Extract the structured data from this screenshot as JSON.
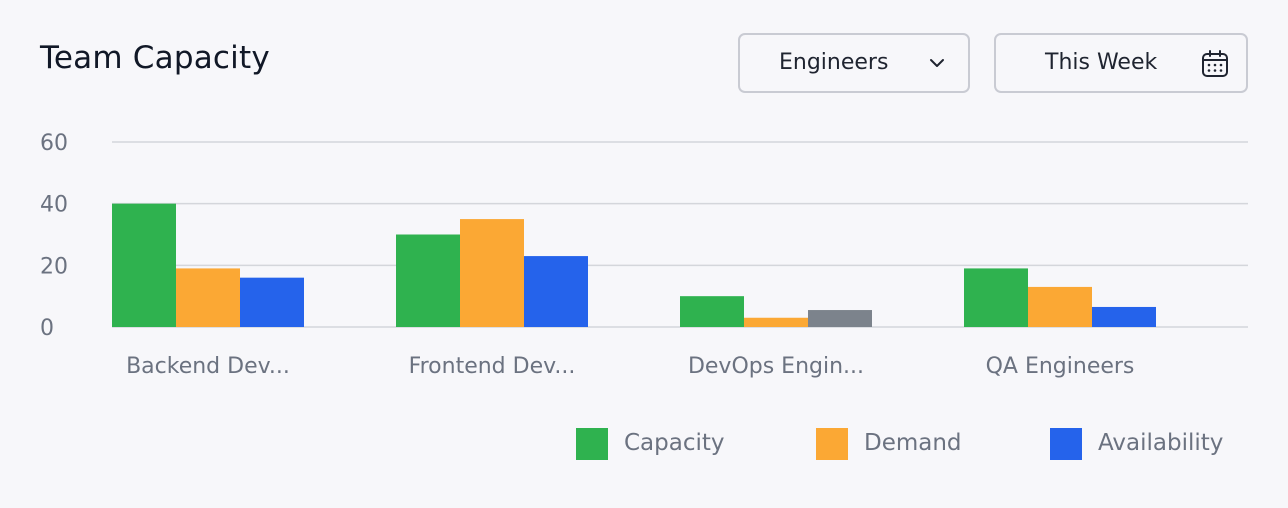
{
  "card": {
    "title": "Team Capacity",
    "role_filter": {
      "value": "Engineers",
      "icon": "chevron-down-icon"
    },
    "period_filter": {
      "value": "This Week",
      "icon": "calendar-icon"
    }
  },
  "colors": {
    "capacity": "#2fb24f",
    "demand": "#fba834",
    "availability": "#2563eb",
    "availability_low": "#7c838c",
    "grid": "#d4d6db",
    "axis_text": "#6b7280"
  },
  "chart_data": {
    "type": "bar",
    "title": "",
    "xlabel": "",
    "ylabel": "",
    "ylim": [
      0,
      60
    ],
    "yticks": [
      "0",
      "20",
      "40",
      "60"
    ],
    "grid": true,
    "legend_position": "bottom-right",
    "categories": [
      "Backend Dev...",
      "Frontend Dev...",
      "DevOps Engin...",
      "QA Engineers"
    ],
    "series": [
      {
        "name": "Capacity",
        "values": [
          40,
          30,
          10,
          19
        ]
      },
      {
        "name": "Demand",
        "values": [
          19,
          35,
          3,
          13
        ]
      },
      {
        "name": "Availability",
        "values": [
          16,
          23,
          5.5,
          6.5
        ]
      }
    ]
  }
}
